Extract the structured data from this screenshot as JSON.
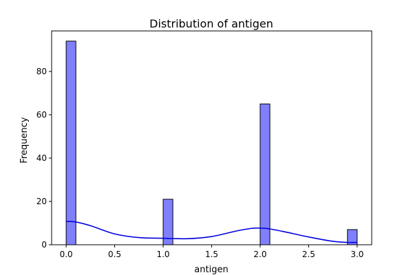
{
  "chart_data": {
    "type": "bar",
    "title": "Distribution of antigen",
    "xlabel": "antigen",
    "ylabel": "Frequency",
    "xlim": [
      -0.15,
      3.15
    ],
    "ylim": [
      0,
      98.7
    ],
    "xticks": [
      0.0,
      0.5,
      1.0,
      1.5,
      2.0,
      2.5,
      3.0
    ],
    "xtick_labels": [
      "0.0",
      "0.5",
      "1.0",
      "1.5",
      "2.0",
      "2.5",
      "3.0"
    ],
    "yticks": [
      0,
      20,
      40,
      60,
      80
    ],
    "ytick_labels": [
      "0",
      "20",
      "40",
      "60",
      "80"
    ],
    "grid": false,
    "bins": [
      {
        "x0": 0.0,
        "x1": 0.1,
        "count": 94
      },
      {
        "x0": 1.0,
        "x1": 1.1,
        "count": 21
      },
      {
        "x0": 2.0,
        "x1": 2.1,
        "count": 65
      },
      {
        "x0": 2.9,
        "x1": 3.0,
        "count": 7
      }
    ],
    "kde": {
      "x": [
        0.0,
        0.1,
        0.25,
        0.5,
        0.75,
        1.0,
        1.25,
        1.5,
        1.75,
        1.9,
        2.0,
        2.1,
        2.25,
        2.5,
        2.75,
        2.9,
        3.0
      ],
      "y": [
        10.8,
        10.5,
        8.8,
        5.0,
        3.3,
        3.0,
        2.8,
        3.8,
        6.3,
        7.5,
        7.7,
        7.3,
        6.0,
        3.6,
        1.6,
        1.1,
        1.1
      ]
    },
    "colors": {
      "bar_fill": "#8080ff",
      "bar_edge": "#000000",
      "kde_line": "#0000dd"
    }
  }
}
